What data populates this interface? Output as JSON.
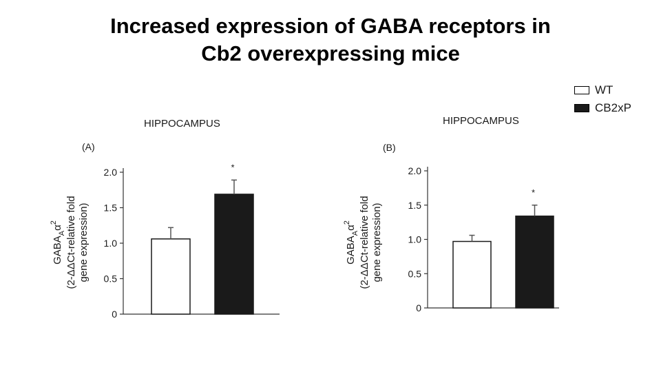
{
  "slide": {
    "title_line1": "Increased expression of GABA receptors in",
    "title_line2": "Cb2 overexpressing mice"
  },
  "legend": [
    {
      "label": "WT",
      "color": "#ffffff"
    },
    {
      "label": "CB2xP",
      "color": "#1a1a1a"
    }
  ],
  "chart_data": [
    {
      "type": "bar",
      "panel": "(A)",
      "title": "HIPPOCAMPUS",
      "ylabel_main": "GABA",
      "ylabel_sub": "A",
      "ylabel_greek": "α",
      "ylabel_sup": "2",
      "ylabel_line2": "(2-ΔΔCt-relative fold",
      "ylabel_line3": "gene expression)",
      "ylim": [
        0,
        2.0
      ],
      "yticks": [
        "0",
        "0.5",
        "1.0",
        "1.5",
        "2.0"
      ],
      "categories": [
        "WT",
        "CB2xP"
      ],
      "values": [
        1.06,
        1.69
      ],
      "errors": [
        0.16,
        0.2
      ],
      "colors": [
        "#ffffff",
        "#1a1a1a"
      ],
      "significance": [
        "",
        "*"
      ]
    },
    {
      "type": "bar",
      "panel": "(B)",
      "title": "HIPPOCAMPUS",
      "ylabel_main": "GABA",
      "ylabel_sub": "A",
      "ylabel_greek": "α",
      "ylabel_sup": "2",
      "ylabel_line2": "(2-ΔΔCt-relative fold",
      "ylabel_line3": "gene expression)",
      "ylim": [
        0,
        2.0
      ],
      "yticks": [
        "0",
        "0.5",
        "1.0",
        "1.5",
        "2.0"
      ],
      "categories": [
        "WT",
        "CB2xP"
      ],
      "values": [
        0.97,
        1.34
      ],
      "errors": [
        0.09,
        0.16
      ],
      "colors": [
        "#ffffff",
        "#1a1a1a"
      ],
      "significance": [
        "",
        "*"
      ]
    }
  ]
}
